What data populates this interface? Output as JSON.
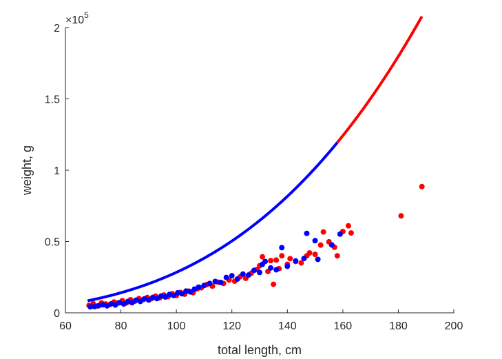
{
  "chart_data": {
    "type": "scatter",
    "xlabel": "total length, cm",
    "ylabel": "weight, g",
    "y_exponent": {
      "base": "10",
      "power": "5"
    },
    "xlim": [
      60,
      200
    ],
    "ylim": [
      0,
      200000
    ],
    "xticks": [
      60,
      80,
      100,
      120,
      140,
      160,
      180,
      200
    ],
    "xtick_labels": [
      "60",
      "80",
      "100",
      "120",
      "140",
      "160",
      "180",
      "200"
    ],
    "yticks": [
      0,
      50000,
      100000,
      150000,
      200000
    ],
    "ytick_labels": [
      "0",
      "0.5",
      "1",
      "1.5",
      "2"
    ],
    "grid": false,
    "curves": [
      {
        "color": "#0000ff",
        "x_range": [
          68,
          158
        ],
        "model": "power",
        "a": 0.0149,
        "b": 3.14
      },
      {
        "color": "#ff0000",
        "x_range": [
          158,
          188.5
        ],
        "model": "power",
        "a": 0.0149,
        "b": 3.14
      }
    ],
    "series": [
      {
        "color": "#ff0000",
        "points": [
          [
            68.5,
            5200
          ],
          [
            70,
            6500
          ],
          [
            71.5,
            4800
          ],
          [
            73,
            7000
          ],
          [
            74.5,
            6200
          ],
          [
            76,
            5800
          ],
          [
            77.5,
            7600
          ],
          [
            79,
            7000
          ],
          [
            80.5,
            8600
          ],
          [
            82,
            6900
          ],
          [
            83.5,
            9200
          ],
          [
            85,
            8100
          ],
          [
            86.5,
            10000
          ],
          [
            88,
            9300
          ],
          [
            89.5,
            10800
          ],
          [
            91,
            9900
          ],
          [
            92.5,
            11700
          ],
          [
            94,
            10500
          ],
          [
            95.5,
            12500
          ],
          [
            97,
            11300
          ],
          [
            98.5,
            13400
          ],
          [
            100,
            12200
          ],
          [
            101.5,
            14300
          ],
          [
            103,
            13100
          ],
          [
            104.5,
            15200
          ],
          [
            106,
            14100
          ],
          [
            107.5,
            16800
          ],
          [
            109,
            17600
          ],
          [
            111,
            19800
          ],
          [
            113,
            18700
          ],
          [
            115,
            21500
          ],
          [
            117,
            20600
          ],
          [
            119,
            23000
          ],
          [
            121,
            22200
          ],
          [
            123,
            25300
          ],
          [
            125,
            24200
          ],
          [
            127,
            27800
          ],
          [
            129,
            30300
          ],
          [
            130,
            33000
          ],
          [
            131,
            39300
          ],
          [
            133,
            29000
          ],
          [
            134,
            36600
          ],
          [
            135,
            20000
          ],
          [
            136,
            37000
          ],
          [
            137,
            31000
          ],
          [
            138,
            40000
          ],
          [
            140,
            34000
          ],
          [
            141,
            38000
          ],
          [
            143,
            36000
          ],
          [
            145,
            35000
          ],
          [
            147,
            40000
          ],
          [
            148,
            42000
          ],
          [
            150,
            41000
          ],
          [
            152,
            47500
          ],
          [
            153,
            56700
          ],
          [
            155,
            49800
          ],
          [
            157,
            46000
          ],
          [
            158,
            40000
          ],
          [
            160,
            57000
          ],
          [
            162,
            61000
          ],
          [
            163,
            56000
          ],
          [
            181,
            68000
          ],
          [
            188.5,
            88500
          ]
        ]
      },
      {
        "color": "#0000ff",
        "points": [
          [
            69,
            4200
          ],
          [
            70.5,
            4400
          ],
          [
            72,
            5000
          ],
          [
            73.5,
            5600
          ],
          [
            75,
            4900
          ],
          [
            76.5,
            6300
          ],
          [
            78,
            5500
          ],
          [
            79.5,
            7100
          ],
          [
            81,
            6200
          ],
          [
            82.5,
            8000
          ],
          [
            84,
            7100
          ],
          [
            85.5,
            8900
          ],
          [
            87,
            8000
          ],
          [
            88.5,
            9800
          ],
          [
            90,
            9000
          ],
          [
            91.5,
            10800
          ],
          [
            93,
            10000
          ],
          [
            94.5,
            11800
          ],
          [
            96,
            11100
          ],
          [
            97.5,
            12900
          ],
          [
            99,
            12200
          ],
          [
            100.5,
            14100
          ],
          [
            102,
            13400
          ],
          [
            103.5,
            15300
          ],
          [
            105,
            14700
          ],
          [
            106.5,
            16600
          ],
          [
            108,
            18000
          ],
          [
            110,
            19200
          ],
          [
            112,
            20600
          ],
          [
            114,
            22000
          ],
          [
            116,
            21300
          ],
          [
            118,
            24800
          ],
          [
            120,
            26000
          ],
          [
            122,
            23700
          ],
          [
            124,
            27200
          ],
          [
            126,
            26500
          ],
          [
            128,
            29800
          ],
          [
            130,
            28300
          ],
          [
            131,
            34000
          ],
          [
            132,
            36000
          ],
          [
            134,
            31500
          ],
          [
            136,
            30200
          ],
          [
            138,
            45700
          ],
          [
            140,
            32600
          ],
          [
            143,
            36400
          ],
          [
            146,
            38100
          ],
          [
            147,
            55700
          ],
          [
            150,
            50600
          ],
          [
            151,
            37500
          ],
          [
            156,
            47600
          ],
          [
            159,
            55200
          ]
        ]
      }
    ]
  }
}
